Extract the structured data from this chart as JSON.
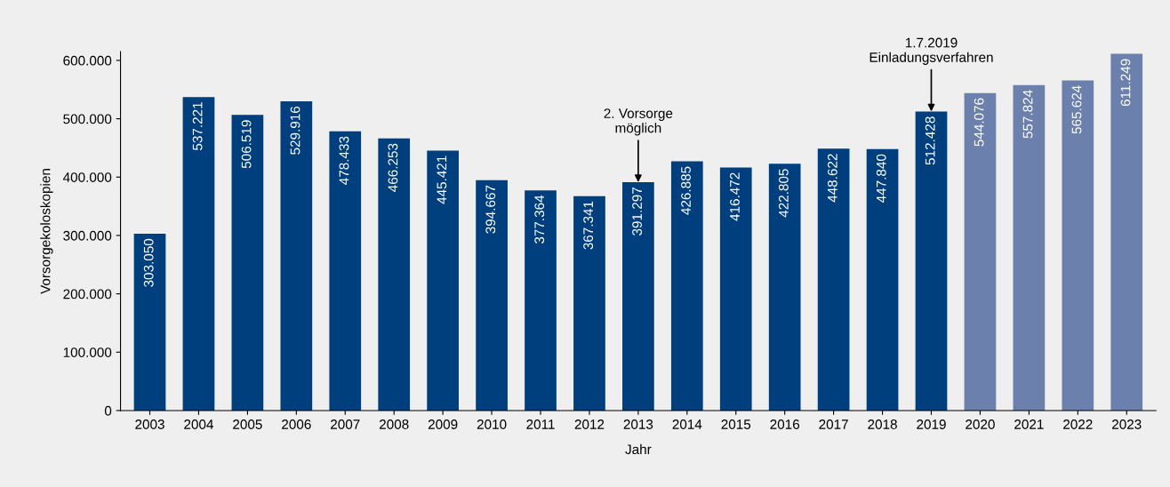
{
  "chart_data": {
    "type": "bar",
    "xlabel": "Jahr",
    "ylabel": "Vorsorgekoloskopien",
    "categories": [
      "2003",
      "2004",
      "2005",
      "2006",
      "2007",
      "2008",
      "2009",
      "2010",
      "2011",
      "2012",
      "2013",
      "2014",
      "2015",
      "2016",
      "2017",
      "2018",
      "2019",
      "2020",
      "2021",
      "2022",
      "2023"
    ],
    "values": [
      303050,
      537221,
      506519,
      529916,
      478433,
      466253,
      445421,
      394667,
      377364,
      367341,
      391297,
      426885,
      416472,
      422805,
      448622,
      447840,
      512428,
      544076,
      557824,
      565624,
      611249
    ],
    "value_labels": [
      "303.050",
      "537.221",
      "506.519",
      "529.916",
      "478.433",
      "466.253",
      "445.421",
      "394.667",
      "377.364",
      "367.341",
      "391.297",
      "426.885",
      "416.472",
      "422.805",
      "448.622",
      "447.840",
      "512.428",
      "544.076",
      "557.824",
      "565.624",
      "611.249"
    ],
    "colors": [
      "#003f7d",
      "#003f7d",
      "#003f7d",
      "#003f7d",
      "#003f7d",
      "#003f7d",
      "#003f7d",
      "#003f7d",
      "#003f7d",
      "#003f7d",
      "#003f7d",
      "#003f7d",
      "#003f7d",
      "#003f7d",
      "#003f7d",
      "#003f7d",
      "#003f7d",
      "#6c80ad",
      "#6c80ad",
      "#6c80ad",
      "#6c80ad"
    ],
    "ylim": [
      0,
      615000
    ],
    "yticks": [
      0,
      {
        "value": 100000,
        "label": "100.000"
      },
      {
        "value": 200000,
        "label": "200.000"
      },
      {
        "value": 300000,
        "label": "300.000"
      },
      {
        "value": 400000,
        "label": "400.000"
      },
      {
        "value": 500000,
        "label": "500.000"
      },
      {
        "value": 600000,
        "label": "600.000"
      }
    ],
    "annotations": [
      {
        "text": "2. Vorsorge\nmöglich",
        "x": "2013",
        "y": 391297
      },
      {
        "text": "1.7.2019\nEinladungsverfahren",
        "x": "2019",
        "y": 512428
      }
    ],
    "grid": false,
    "legend": false
  }
}
